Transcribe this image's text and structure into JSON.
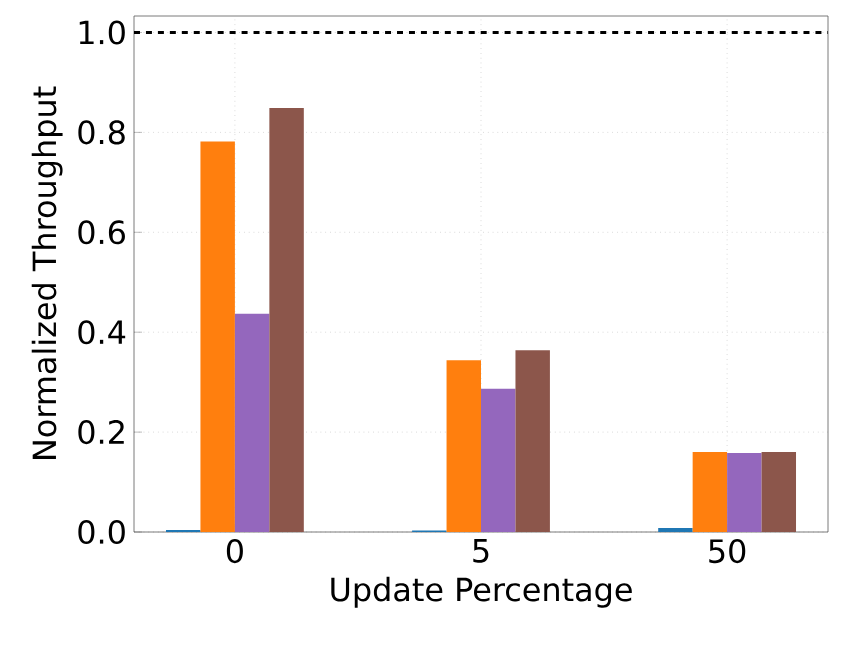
{
  "chart_data": {
    "type": "bar",
    "xlabel": "Update Percentage",
    "ylabel": "Normalized Throughput",
    "categories": [
      "0",
      "5",
      "50"
    ],
    "series": [
      {
        "color": "#1f77b4",
        "values": [
          0.004,
          0.003,
          0.008
        ]
      },
      {
        "color": "#ff7f0e",
        "values": [
          0.782,
          0.344,
          0.16
        ]
      },
      {
        "color": "#9467bd",
        "values": [
          0.437,
          0.287,
          0.158
        ]
      },
      {
        "color": "#8c564b",
        "values": [
          0.849,
          0.364,
          0.16
        ]
      }
    ],
    "ylim": [
      0,
      1.033
    ],
    "yticks": [
      {
        "value": 0,
        "label": "0.0"
      },
      {
        "value": 0.2,
        "label": "0.2"
      },
      {
        "value": 0.4,
        "label": "0.4"
      },
      {
        "value": 0.6,
        "label": "0.6"
      },
      {
        "value": 0.8,
        "label": "0.8"
      },
      {
        "value": 1,
        "label": "1.0"
      }
    ],
    "grid": true,
    "ref_lines": [
      {
        "axis": "y",
        "value": 1,
        "color": "#000000",
        "line_style": "dashed"
      }
    ]
  }
}
